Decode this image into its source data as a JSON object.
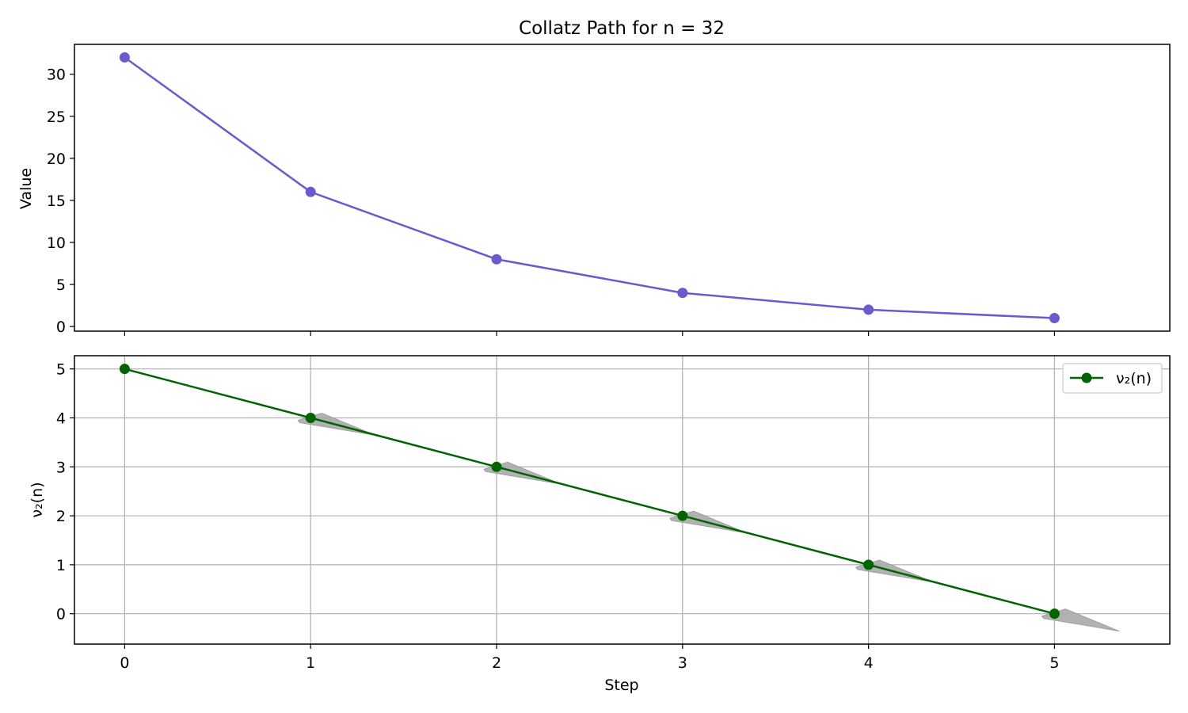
{
  "chart_data": [
    {
      "type": "line",
      "title": "Collatz Path for n = 32",
      "xlabel": "",
      "ylabel": "Value",
      "x": [
        0,
        1,
        2,
        3,
        4,
        5
      ],
      "series": [
        {
          "values": [
            32,
            16,
            8,
            4,
            2,
            1
          ],
          "color": "#6a5acd",
          "marker": "circle"
        }
      ],
      "xlim": [
        -0.27,
        5.62
      ],
      "ylim": [
        -0.55,
        33.55
      ],
      "xticks": [
        "0",
        "1",
        "2",
        "3",
        "4",
        "5"
      ],
      "yticks": [
        "0",
        "5",
        "10",
        "15",
        "20",
        "25",
        "30"
      ],
      "grid": false,
      "sharex": true
    },
    {
      "type": "line",
      "title": "",
      "xlabel": "Step",
      "ylabel": "ν₂(n)",
      "x": [
        0,
        1,
        2,
        3,
        4,
        5
      ],
      "series": [
        {
          "name": "ν₂(n)",
          "values": [
            5,
            4,
            3,
            2,
            1,
            0
          ],
          "color": "#006400",
          "marker": "circle"
        }
      ],
      "annotations": [
        {
          "type": "arrow",
          "from": [
            1,
            4
          ],
          "color": "#aaaaaa"
        },
        {
          "type": "arrow",
          "from": [
            2,
            3
          ],
          "color": "#aaaaaa"
        },
        {
          "type": "arrow",
          "from": [
            3,
            2
          ],
          "color": "#aaaaaa"
        },
        {
          "type": "arrow",
          "from": [
            4,
            1
          ],
          "color": "#aaaaaa"
        },
        {
          "type": "arrow",
          "from": [
            5,
            0
          ],
          "color": "#aaaaaa"
        }
      ],
      "xlim": [
        -0.27,
        5.62
      ],
      "ylim": [
        -0.62,
        5.27
      ],
      "xticks": [
        "0",
        "1",
        "2",
        "3",
        "4",
        "5"
      ],
      "yticks": [
        "0",
        "1",
        "2",
        "3",
        "4",
        "5"
      ],
      "grid": true,
      "legend": "top-right"
    }
  ]
}
